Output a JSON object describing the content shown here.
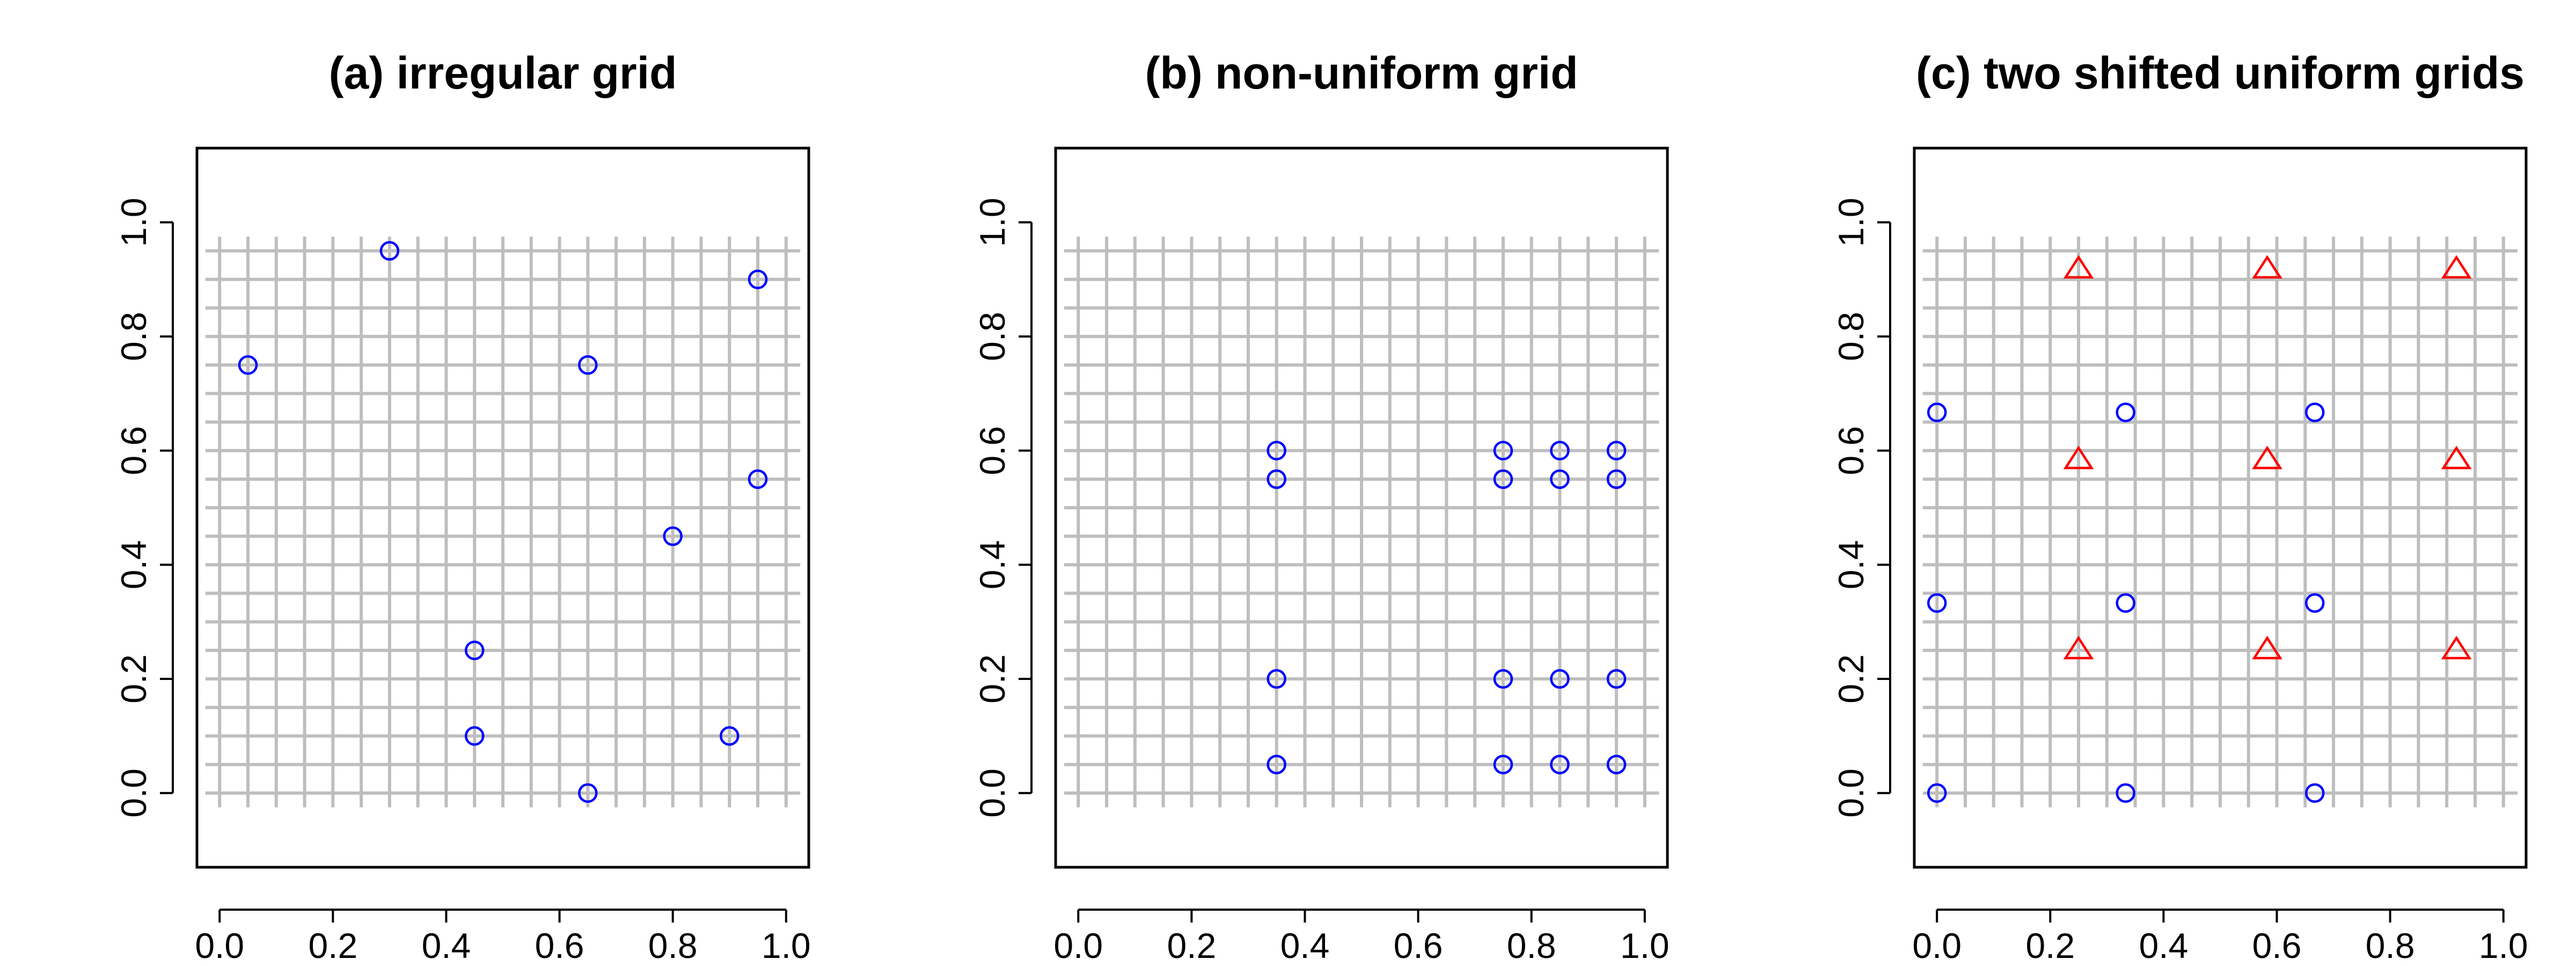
{
  "colors": {
    "grid": "#bebebe",
    "circle_series": "#0000ff",
    "triangle_series": "#ff0000",
    "axis": "#000000"
  },
  "chart_data": [
    {
      "type": "scatter",
      "title": "(a) irregular grid",
      "xlabel": "",
      "ylabel": "",
      "xlim": [
        -0.04,
        1.04
      ],
      "ylim": [
        -0.13,
        1.13
      ],
      "xticks": [
        "0.0",
        "0.2",
        "0.4",
        "0.6",
        "0.8",
        "1.0"
      ],
      "yticks": [
        "0.0",
        "0.2",
        "0.4",
        "0.6",
        "0.8",
        "1.0"
      ],
      "grid": true,
      "grid_spacing": 0.05,
      "series": [
        {
          "marker": "circle",
          "color": "#0000ff",
          "x": [
            0.05,
            0.3,
            0.95,
            0.65,
            0.95,
            0.8,
            0.45,
            0.45,
            0.9,
            0.65
          ],
          "y": [
            0.75,
            0.95,
            0.9,
            0.75,
            0.55,
            0.45,
            0.25,
            0.1,
            0.1,
            0.0
          ]
        }
      ]
    },
    {
      "type": "scatter",
      "title": "(b) non-uniform grid",
      "xlabel": "",
      "ylabel": "",
      "xlim": [
        -0.04,
        1.04
      ],
      "ylim": [
        -0.13,
        1.13
      ],
      "xticks": [
        "0.0",
        "0.2",
        "0.4",
        "0.6",
        "0.8",
        "1.0"
      ],
      "yticks": [
        "0.0",
        "0.2",
        "0.4",
        "0.6",
        "0.8",
        "1.0"
      ],
      "grid": true,
      "grid_spacing": 0.05,
      "series": [
        {
          "marker": "circle",
          "color": "#0000ff",
          "x": [
            0.35,
            0.75,
            0.85,
            0.95,
            0.35,
            0.75,
            0.85,
            0.95,
            0.35,
            0.75,
            0.85,
            0.95,
            0.35,
            0.75,
            0.85,
            0.95
          ],
          "y": [
            0.6,
            0.6,
            0.6,
            0.6,
            0.55,
            0.55,
            0.55,
            0.55,
            0.2,
            0.2,
            0.2,
            0.2,
            0.05,
            0.05,
            0.05,
            0.05
          ]
        }
      ]
    },
    {
      "type": "scatter",
      "title": "(c) two shifted uniform grids",
      "xlabel": "",
      "ylabel": "",
      "xlim": [
        -0.04,
        1.04
      ],
      "ylim": [
        -0.13,
        1.13
      ],
      "xticks": [
        "0.0",
        "0.2",
        "0.4",
        "0.6",
        "0.8",
        "1.0"
      ],
      "yticks": [
        "0.0",
        "0.2",
        "0.4",
        "0.6",
        "0.8",
        "1.0"
      ],
      "grid": true,
      "grid_spacing": 0.05,
      "series": [
        {
          "marker": "circle",
          "color": "#0000ff",
          "x": [
            0.0,
            0.333,
            0.667,
            0.0,
            0.333,
            0.667,
            0.0,
            0.333,
            0.667
          ],
          "y": [
            0.667,
            0.667,
            0.667,
            0.333,
            0.333,
            0.333,
            0.0,
            0.0,
            0.0
          ]
        },
        {
          "marker": "triangle",
          "color": "#ff0000",
          "x": [
            0.25,
            0.583,
            0.917,
            0.25,
            0.583,
            0.917,
            0.25,
            0.583,
            0.917
          ],
          "y": [
            0.917,
            0.917,
            0.917,
            0.583,
            0.583,
            0.583,
            0.25,
            0.25,
            0.25
          ]
        }
      ]
    }
  ]
}
